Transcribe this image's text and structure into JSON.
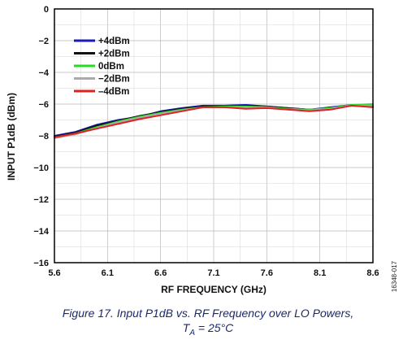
{
  "figure": {
    "caption_line1": "Figure 17. Input P1dB vs. RF Frequency over LO Powers,",
    "caption_line2_prefix": "T",
    "caption_line2_sub": "A",
    "caption_line2_suffix": " = 25°C",
    "doc_id": "16348-017"
  },
  "chart_data": {
    "type": "line",
    "xlabel": "RF FREQUENCY (GHz)",
    "ylabel": "INPUT P1dB (dBm)",
    "xlim": [
      5.6,
      8.6
    ],
    "ylim": [
      -16,
      0
    ],
    "x_ticks": [
      5.6,
      6.1,
      6.6,
      7.1,
      7.6,
      8.1,
      8.6
    ],
    "x_tick_labels": [
      "5.6",
      "6.1",
      "6.6",
      "7.1",
      "7.6",
      "8.1",
      "8.6"
    ],
    "y_ticks": [
      0,
      -2,
      -4,
      -6,
      -8,
      -10,
      -12,
      -14,
      -16
    ],
    "y_tick_labels": [
      "0",
      "−2",
      "−4",
      "−6",
      "−8",
      "−10",
      "−12",
      "−14",
      "−16"
    ],
    "grid": true,
    "legend_position": "top-left",
    "x": [
      5.6,
      5.8,
      6.0,
      6.2,
      6.4,
      6.6,
      6.8,
      7.0,
      7.2,
      7.4,
      7.6,
      7.8,
      8.0,
      8.2,
      8.4,
      8.6
    ],
    "series": [
      {
        "name": "+4dBm",
        "color": "#1a1ab4",
        "values": [
          -8.0,
          -7.75,
          -7.3,
          -7.0,
          -6.8,
          -6.45,
          -6.25,
          -6.1,
          -6.1,
          -6.05,
          -6.15,
          -6.25,
          -6.35,
          -6.2,
          -6.05,
          -6.1
        ]
      },
      {
        "name": "+2dBm",
        "color": "#111111",
        "values": [
          -8.05,
          -7.8,
          -7.35,
          -7.05,
          -6.75,
          -6.5,
          -6.3,
          -6.15,
          -6.15,
          -6.1,
          -6.15,
          -6.25,
          -6.35,
          -6.25,
          -6.1,
          -6.15
        ]
      },
      {
        "name": "0dBm",
        "color": "#22dd22",
        "values": [
          -8.1,
          -7.85,
          -7.45,
          -7.1,
          -6.8,
          -6.55,
          -6.35,
          -6.2,
          -6.15,
          -6.15,
          -6.2,
          -6.3,
          -6.35,
          -6.25,
          -6.05,
          -6.0
        ]
      },
      {
        "name": "−2dBm",
        "color": "#aaaaaa",
        "values": [
          -8.15,
          -7.9,
          -7.5,
          -7.15,
          -6.85,
          -6.6,
          -6.4,
          -6.2,
          -6.2,
          -6.2,
          -6.2,
          -6.35,
          -6.4,
          -6.3,
          -6.1,
          -6.1
        ]
      },
      {
        "name": "–4dBm",
        "color": "#e02020",
        "values": [
          -8.1,
          -7.85,
          -7.55,
          -7.25,
          -6.95,
          -6.7,
          -6.45,
          -6.2,
          -6.2,
          -6.3,
          -6.25,
          -6.35,
          -6.45,
          -6.35,
          -6.1,
          -6.2
        ]
      }
    ]
  }
}
